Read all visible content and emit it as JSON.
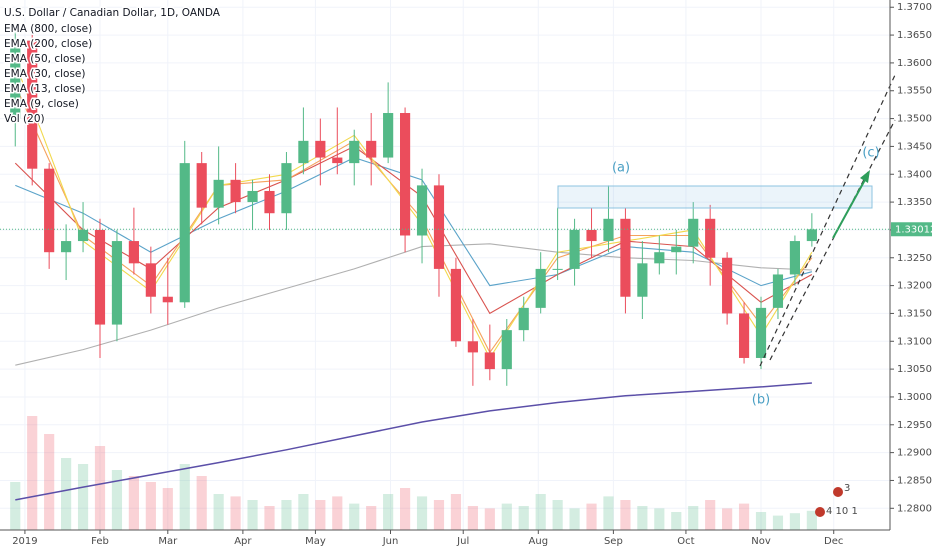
{
  "chart_data": {
    "type": "candlestick",
    "title": "U.S. Dollar / Canadian Dollar, 1D, OANDA",
    "up_color": "#53b987",
    "down_color": "#eb4d5c",
    "candles": [
      [
        1.35,
        1.3665,
        1.345,
        1.364
      ],
      [
        1.364,
        1.366,
        1.338,
        1.341
      ],
      [
        1.341,
        1.342,
        1.323,
        1.326
      ],
      [
        1.326,
        1.331,
        1.321,
        1.328
      ],
      [
        1.328,
        1.335,
        1.326,
        1.33
      ],
      [
        1.33,
        1.332,
        1.307,
        1.313
      ],
      [
        1.313,
        1.33,
        1.31,
        1.328
      ],
      [
        1.328,
        1.334,
        1.322,
        1.324
      ],
      [
        1.324,
        1.327,
        1.315,
        1.318
      ],
      [
        1.318,
        1.325,
        1.313,
        1.317
      ],
      [
        1.317,
        1.346,
        1.316,
        1.342
      ],
      [
        1.342,
        1.344,
        1.331,
        1.334
      ],
      [
        1.334,
        1.345,
        1.331,
        1.339
      ],
      [
        1.339,
        1.342,
        1.333,
        1.335
      ],
      [
        1.335,
        1.339,
        1.33,
        1.337
      ],
      [
        1.337,
        1.34,
        1.33,
        1.333
      ],
      [
        1.333,
        1.344,
        1.33,
        1.342
      ],
      [
        1.342,
        1.352,
        1.34,
        1.346
      ],
      [
        1.346,
        1.35,
        1.338,
        1.343
      ],
      [
        1.343,
        1.352,
        1.34,
        1.342
      ],
      [
        1.342,
        1.348,
        1.338,
        1.346
      ],
      [
        1.346,
        1.351,
        1.338,
        1.343
      ],
      [
        1.343,
        1.3565,
        1.342,
        1.351
      ],
      [
        1.351,
        1.352,
        1.326,
        1.329
      ],
      [
        1.329,
        1.341,
        1.324,
        1.338
      ],
      [
        1.338,
        1.34,
        1.318,
        1.323
      ],
      [
        1.323,
        1.325,
        1.309,
        1.31
      ],
      [
        1.31,
        1.314,
        1.302,
        1.308
      ],
      [
        1.308,
        1.313,
        1.303,
        1.305
      ],
      [
        1.305,
        1.314,
        1.302,
        1.312
      ],
      [
        1.312,
        1.318,
        1.31,
        1.316
      ],
      [
        1.316,
        1.326,
        1.315,
        1.323
      ],
      [
        1.323,
        1.334,
        1.321,
        1.323
      ],
      [
        1.323,
        1.332,
        1.32,
        1.33
      ],
      [
        1.33,
        1.334,
        1.325,
        1.328
      ],
      [
        1.328,
        1.338,
        1.326,
        1.332
      ],
      [
        1.332,
        1.334,
        1.315,
        1.318
      ],
      [
        1.318,
        1.328,
        1.314,
        1.324
      ],
      [
        1.324,
        1.329,
        1.322,
        1.326
      ],
      [
        1.326,
        1.33,
        1.322,
        1.327
      ],
      [
        1.327,
        1.335,
        1.324,
        1.332
      ],
      [
        1.332,
        1.3345,
        1.32,
        1.325
      ],
      [
        1.325,
        1.326,
        1.313,
        1.315
      ],
      [
        1.315,
        1.317,
        1.306,
        1.307
      ],
      [
        1.307,
        1.318,
        1.305,
        1.316
      ],
      [
        1.316,
        1.323,
        1.314,
        1.322
      ],
      [
        1.322,
        1.329,
        1.32,
        1.328
      ],
      [
        1.328,
        1.333,
        1.327,
        1.3301
      ]
    ],
    "volume_label": "Vol (20)",
    "volume": [
      40,
      95,
      80,
      60,
      55,
      70,
      50,
      45,
      40,
      35,
      55,
      45,
      30,
      28,
      25,
      20,
      25,
      30,
      25,
      28,
      22,
      20,
      30,
      35,
      28,
      25,
      30,
      20,
      18,
      22,
      20,
      30,
      25,
      18,
      22,
      28,
      25,
      20,
      18,
      15,
      20,
      25,
      18,
      22,
      15,
      12,
      14,
      16
    ],
    "vlim": [
      0,
      100
    ],
    "ema_x": [
      0,
      4,
      8,
      12,
      16,
      20,
      24,
      28,
      32,
      36,
      40,
      44,
      47
    ],
    "ema": [
      {
        "name": "EMA (800, close)",
        "color": "#5b4fa8",
        "values": [
          1.2815,
          1.2838,
          1.286,
          1.2882,
          1.2905,
          1.293,
          1.2955,
          1.2975,
          1.299,
          1.3002,
          1.301,
          1.3018,
          1.3025
        ]
      },
      {
        "name": "EMA (200, close)",
        "color": "#b0b0b0",
        "values": [
          1.3057,
          1.3085,
          1.312,
          1.316,
          1.3195,
          1.323,
          1.327,
          1.3275,
          1.326,
          1.325,
          1.3245,
          1.3232,
          1.3228
        ]
      },
      {
        "name": "EMA (50, close)",
        "color": "#5ba3c9",
        "values": [
          1.338,
          1.333,
          1.326,
          1.332,
          1.337,
          1.343,
          1.339,
          1.32,
          1.322,
          1.327,
          1.326,
          1.32,
          1.3225
        ]
      },
      {
        "name": "EMA (30, close)",
        "color": "#d9534f",
        "values": [
          1.342,
          1.33,
          1.323,
          1.334,
          1.339,
          1.345,
          1.336,
          1.315,
          1.322,
          1.328,
          1.327,
          1.317,
          1.322
        ]
      },
      {
        "name": "EMA (13, close)",
        "color": "#f5a25d",
        "values": [
          1.356,
          1.329,
          1.32,
          1.338,
          1.339,
          1.346,
          1.332,
          1.308,
          1.325,
          1.329,
          1.329,
          1.313,
          1.325
        ]
      },
      {
        "name": "EMA (9, close)",
        "color": "#f2d94e",
        "values": [
          1.36,
          1.328,
          1.319,
          1.338,
          1.34,
          1.347,
          1.331,
          1.307,
          1.326,
          1.328,
          1.33,
          1.311,
          1.326
        ]
      }
    ],
    "xlim": [
      -0.9,
      52.2
    ],
    "ylim": [
      1.2761,
      1.3713
    ],
    "grid": true,
    "xticks": [
      {
        "value": 0.57,
        "label": "2019"
      },
      {
        "value": 5,
        "label": "Feb"
      },
      {
        "value": 9,
        "label": "Mar"
      },
      {
        "value": 13.43,
        "label": "Apr"
      },
      {
        "value": 17.71,
        "label": "May"
      },
      {
        "value": 22.14,
        "label": "Jun"
      },
      {
        "value": 26.43,
        "label": "Jul"
      },
      {
        "value": 30.86,
        "label": "Aug"
      },
      {
        "value": 35.29,
        "label": "Sep"
      },
      {
        "value": 39.57,
        "label": "Oct"
      },
      {
        "value": 44,
        "label": "Nov"
      },
      {
        "value": 48.29,
        "label": "Dec"
      }
    ],
    "yticks": [
      {
        "value": 1.28,
        "label": "1.28000"
      },
      {
        "value": 1.285,
        "label": "1.28500"
      },
      {
        "value": 1.29,
        "label": "1.29000"
      },
      {
        "value": 1.295,
        "label": "1.29500"
      },
      {
        "value": 1.3,
        "label": "1.30000"
      },
      {
        "value": 1.305,
        "label": "1.30500"
      },
      {
        "value": 1.31,
        "label": "1.31000"
      },
      {
        "value": 1.315,
        "label": "1.31500"
      },
      {
        "value": 1.32,
        "label": "1.32000"
      },
      {
        "value": 1.325,
        "label": "1.32500"
      },
      {
        "value": 1.33,
        "label": "1.33000"
      },
      {
        "value": 1.335,
        "label": "1.33500"
      },
      {
        "value": 1.34,
        "label": "1.34000"
      },
      {
        "value": 1.345,
        "label": "1.34500"
      },
      {
        "value": 1.35,
        "label": "1.35000"
      },
      {
        "value": 1.355,
        "label": "1.35500"
      },
      {
        "value": 1.36,
        "label": "1.36000"
      },
      {
        "value": 1.365,
        "label": "1.36500"
      },
      {
        "value": 1.37,
        "label": "1.37000"
      }
    ],
    "last_price": {
      "value": 1.33012,
      "label": "1.33012"
    },
    "annotations": [
      "(a)",
      "(b)",
      "(c)"
    ],
    "events": [
      "3",
      "4 10 1"
    ]
  }
}
